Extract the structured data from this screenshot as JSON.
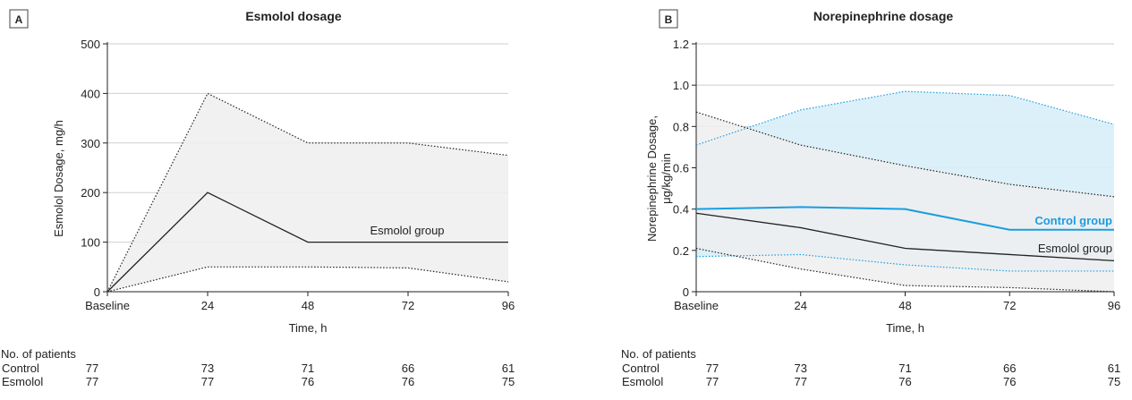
{
  "chart_data": [
    {
      "panel": "A",
      "type": "line",
      "title": "Esmolol dosage",
      "xlabel": "Time, h",
      "ylabel": "Esmolol Dosage, mg/h",
      "categories": [
        "Baseline",
        "24",
        "48",
        "72",
        "96"
      ],
      "ylim": [
        0,
        500
      ],
      "yticks": [
        "0",
        "100",
        "200",
        "300",
        "400",
        "500"
      ],
      "grid": true,
      "series": [
        {
          "name": "Esmolol group",
          "color": "#222222",
          "values": [
            0,
            200,
            100,
            100,
            100
          ],
          "upper": [
            0,
            400,
            300,
            300,
            275
          ],
          "lower": [
            0,
            50,
            50,
            48,
            20
          ],
          "band_color": "#eeeeee"
        }
      ],
      "patients": {
        "heading": "No. of patients",
        "rows": [
          {
            "label": "Control",
            "values": [
              "77",
              "73",
              "71",
              "66",
              "61"
            ]
          },
          {
            "label": "Esmolol",
            "values": [
              "77",
              "77",
              "76",
              "76",
              "75"
            ]
          }
        ]
      }
    },
    {
      "panel": "B",
      "type": "line",
      "title": "Norepinephrine dosage",
      "xlabel": "Time, h",
      "ylabel_lines": [
        "Norepinephrine Dosage,",
        "μg/kg/min"
      ],
      "categories": [
        "Baseline",
        "24",
        "48",
        "72",
        "96"
      ],
      "ylim": [
        0,
        1.2
      ],
      "yticks": [
        "0",
        "0.2",
        "0.4",
        "0.6",
        "0.8",
        "1.0",
        "1.2"
      ],
      "grid": true,
      "series": [
        {
          "name": "Control group",
          "color": "#1a9de0",
          "values": [
            0.4,
            0.41,
            0.4,
            0.3,
            0.3
          ],
          "upper": [
            0.71,
            0.88,
            0.97,
            0.95,
            0.81
          ],
          "lower": [
            0.17,
            0.18,
            0.13,
            0.1,
            0.1
          ],
          "band_color": "#d8eef9"
        },
        {
          "name": "Esmolol group",
          "color": "#222222",
          "values": [
            0.38,
            0.31,
            0.21,
            0.18,
            0.15
          ],
          "upper": [
            0.87,
            0.71,
            0.61,
            0.52,
            0.46
          ],
          "lower": [
            0.21,
            0.11,
            0.03,
            0.02,
            0.0
          ],
          "band_color": "#eeeeee"
        }
      ],
      "patients": {
        "heading": "No. of patients",
        "rows": [
          {
            "label": "Control",
            "values": [
              "77",
              "73",
              "71",
              "66",
              "61"
            ]
          },
          {
            "label": "Esmolol",
            "values": [
              "77",
              "77",
              "76",
              "76",
              "75"
            ]
          }
        ]
      }
    }
  ]
}
